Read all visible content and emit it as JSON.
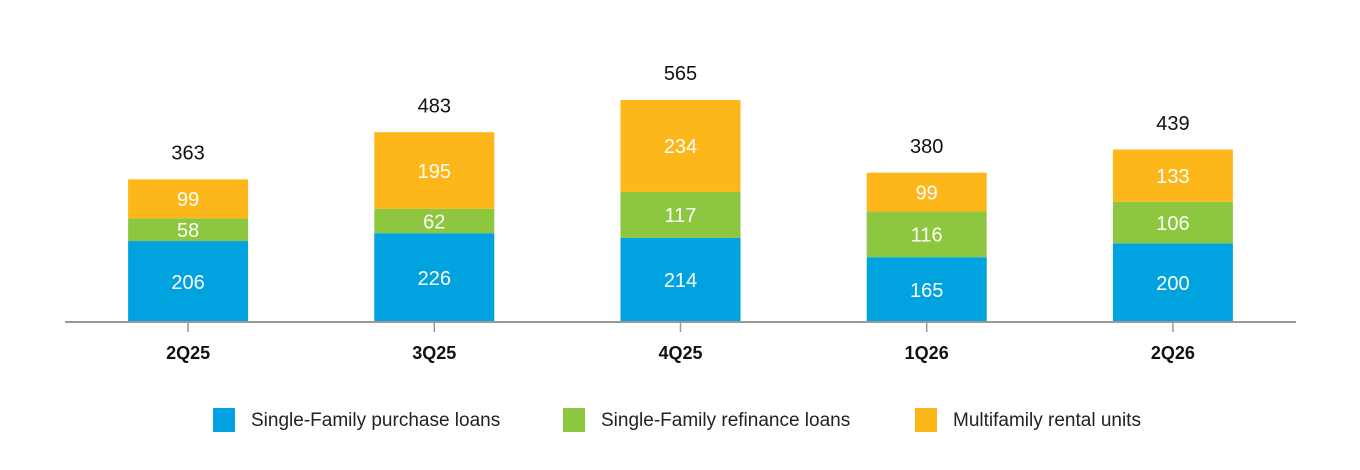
{
  "chart_data": {
    "type": "stacked_bar",
    "categories": [
      "2Q25",
      "3Q25",
      "4Q25",
      "1Q26",
      "2Q26"
    ],
    "series": [
      {
        "name": "Single-Family purchase loans",
        "color": "#00a3e0",
        "values": [
          206,
          226,
          214,
          165,
          200
        ]
      },
      {
        "name": "Single-Family refinance loans",
        "color": "#8dc63f",
        "values": [
          58,
          62,
          117,
          116,
          106
        ]
      },
      {
        "name": "Multifamily rental units",
        "color": "#fdb71a",
        "values": [
          99,
          195,
          234,
          99,
          133
        ]
      }
    ],
    "totals": [
      363,
      483,
      565,
      380,
      439
    ],
    "legend": "bottom"
  }
}
